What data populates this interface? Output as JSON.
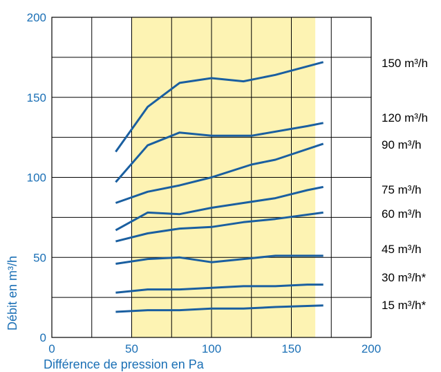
{
  "chart_data": {
    "type": "line",
    "xlabel": "Différence de pression en Pa",
    "ylabel": "Débit en m³/h",
    "xlim": [
      0,
      200
    ],
    "ylim": [
      0,
      200
    ],
    "x_ticks": [
      "0",
      "50",
      "100",
      "150",
      "200"
    ],
    "y_ticks": [
      "0",
      "50",
      "100",
      "150",
      "200"
    ],
    "grid": true,
    "highlight_band": {
      "x_range": [
        50,
        165
      ],
      "color": "#fdf3b3"
    },
    "colors": {
      "line": "#1a5fa0",
      "text": "#1a6fb5",
      "band": "#fdf3b3"
    },
    "series": [
      {
        "name": "150 m³/h",
        "x": [
          40,
          60,
          80,
          100,
          120,
          140,
          170
        ],
        "y": [
          116,
          144,
          159,
          162,
          160,
          164,
          172
        ]
      },
      {
        "name": "120 m³/h",
        "x": [
          40,
          60,
          80,
          100,
          125,
          160,
          170
        ],
        "y": [
          97,
          120,
          128,
          126,
          126,
          132,
          134
        ]
      },
      {
        "name": "90 m³/h",
        "x": [
          40,
          60,
          80,
          100,
          125,
          140,
          170
        ],
        "y": [
          84,
          91,
          95,
          100,
          108,
          111,
          121
        ]
      },
      {
        "name": "75 m³/h",
        "x": [
          40,
          60,
          80,
          100,
          120,
          140,
          160,
          170
        ],
        "y": [
          67,
          78,
          77,
          81,
          84,
          87,
          92,
          94
        ]
      },
      {
        "name": "60 m³/h",
        "x": [
          40,
          60,
          80,
          100,
          120,
          140,
          170
        ],
        "y": [
          60,
          65,
          68,
          69,
          72,
          74,
          78
        ]
      },
      {
        "name": "45 m³/h",
        "x": [
          40,
          60,
          80,
          100,
          120,
          140,
          170
        ],
        "y": [
          46,
          49,
          50,
          47,
          49,
          51,
          51
        ]
      },
      {
        "name": "30 m³/h*",
        "x": [
          40,
          60,
          80,
          100,
          120,
          140,
          160,
          170
        ],
        "y": [
          28,
          30,
          30,
          31,
          32,
          32,
          33,
          33
        ]
      },
      {
        "name": "15 m³/h*",
        "x": [
          40,
          60,
          80,
          100,
          120,
          140,
          170
        ],
        "y": [
          16,
          17,
          17,
          18,
          18,
          19,
          20
        ]
      }
    ]
  }
}
